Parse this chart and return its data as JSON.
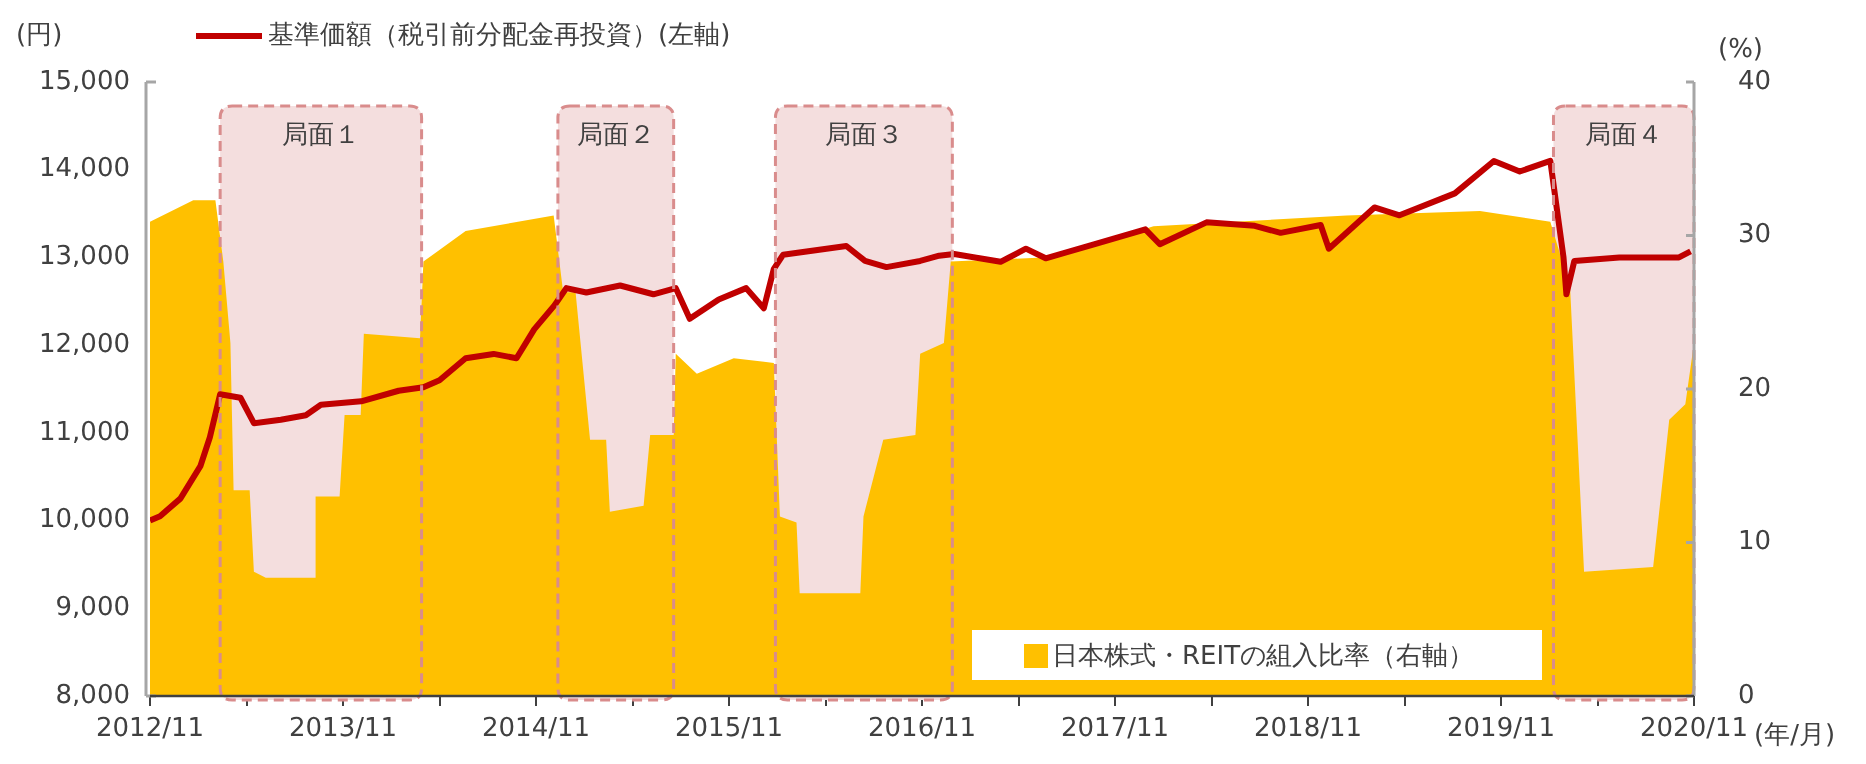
{
  "chart_data": {
    "type": "line",
    "annotations": [
      "(円)"
    ],
    "y2label": "(%)",
    "xlabel": "(年/月)",
    "legend": "top left",
    "xlim": [
      "2012-11",
      "2020-11"
    ],
    "xticks": [
      {
        "value": "2012-11",
        "label": "2012/11"
      },
      {
        "value": "2013-05",
        "label": null
      },
      {
        "value": "2013-11",
        "label": "2013/11"
      },
      {
        "value": "2014-05",
        "label": null
      },
      {
        "value": "2014-11",
        "label": "2014/11"
      },
      {
        "value": "2015-05",
        "label": null
      },
      {
        "value": "2015-11",
        "label": "2015/11"
      },
      {
        "value": "2016-05",
        "label": null
      },
      {
        "value": "2016-11",
        "label": "2016/11"
      },
      {
        "value": "2017-05",
        "label": null
      },
      {
        "value": "2017-11",
        "label": "2017/11"
      },
      {
        "value": "2018-05",
        "label": null
      },
      {
        "value": "2018-11",
        "label": "2018/11"
      },
      {
        "value": "2019-05",
        "label": null
      },
      {
        "value": "2019-11",
        "label": "2019/11"
      },
      {
        "value": "2020-05",
        "label": null
      },
      {
        "value": "2020-11",
        "label": "2020/11"
      }
    ],
    "ylim": [
      8000,
      15000
    ],
    "yticks": [
      {
        "value": 8000,
        "label": "8,000"
      },
      {
        "value": 9000,
        "label": "9,000"
      },
      {
        "value": 10000,
        "label": "10,000"
      },
      {
        "value": 11000,
        "label": "11,000"
      },
      {
        "value": 12000,
        "label": "12,000"
      },
      {
        "value": 13000,
        "label": "13,000"
      },
      {
        "value": 14000,
        "label": "14,000"
      },
      {
        "value": 15000,
        "label": "15,000"
      }
    ],
    "y2lim": [
      0,
      40
    ],
    "y2ticks": [
      0,
      10,
      20,
      30,
      40
    ],
    "series": [
      {
        "name": "基準価額（税引前分配金再投資）(左軸)",
        "type": "line",
        "color": "#c00000",
        "x": [
          "2012-11-01",
          "2012-11-20",
          "2012-12-28",
          "2013-02-05",
          "2013-02-23",
          "2013-03-12",
          "2013-04-20",
          "2013-05-15",
          "2013-07-05",
          "2013-08-22",
          "2013-09-20",
          "2013-12-05",
          "2014-02-15",
          "2014-04-01",
          "2014-05-01",
          "2014-06-20",
          "2014-08-12",
          "2014-09-25",
          "2014-10-28",
          "2014-12-05",
          "2014-12-28",
          "2015-02-05",
          "2015-04-08",
          "2015-06-10",
          "2015-07-22",
          "2015-08-18",
          "2015-10-12",
          "2015-12-03",
          "2016-01-06",
          "2016-01-25",
          "2016-02-12",
          "2016-06-10",
          "2016-07-15",
          "2016-08-25",
          "2016-10-28",
          "2016-12-03",
          "2017-01-01",
          "2017-03-28",
          "2017-05-15",
          "2017-06-22",
          "2017-09-22",
          "2017-12-28",
          "2018-01-25",
          "2018-04-22",
          "2018-07-22",
          "2018-09-10",
          "2018-11-25",
          "2018-12-10",
          "2019-03-05",
          "2019-04-22",
          "2019-08-05",
          "2019-10-18",
          "2019-12-06",
          "2020-02-03",
          "2020-02-28",
          "2020-03-03",
          "2020-03-18",
          "2020-06-12",
          "2020-10-03",
          "2020-10-25"
        ],
        "values": [
          10000,
          10050,
          10250,
          10620,
          10950,
          11440,
          11400,
          11110,
          11150,
          11200,
          11320,
          11360,
          11480,
          11520,
          11600,
          11850,
          11900,
          11850,
          12180,
          12450,
          12650,
          12600,
          12680,
          12580,
          12650,
          12300,
          12520,
          12650,
          12420,
          12870,
          13030,
          13130,
          12960,
          12890,
          12960,
          13020,
          13040,
          12950,
          13100,
          12990,
          13150,
          13320,
          13150,
          13400,
          13360,
          13280,
          13370,
          13100,
          13570,
          13480,
          13730,
          14100,
          13980,
          14100,
          13000,
          12580,
          12960,
          13000,
          13000,
          13070
        ]
      },
      {
        "name": "日本株式・REITの組入比率（右軸）",
        "type": "area",
        "axis": "y2",
        "color": "#ffc000",
        "x": [
          "2012-11-01",
          "2013-01-22",
          "2013-03-03",
          "2013-03-18",
          "2013-04-01",
          "2013-04-07",
          "2013-05-07",
          "2013-05-15",
          "2013-06-07",
          "2013-09-07",
          "2013-09-10",
          "2013-10-25",
          "2013-11-04",
          "2013-12-04",
          "2013-12-10",
          "2014-03-25",
          "2014-04-01",
          "2014-06-20",
          "2014-12-04",
          "2014-12-22",
          "2015-01-15",
          "2015-02-12",
          "2015-03-12",
          "2015-03-19",
          "2015-05-22",
          "2015-06-04",
          "2015-07-18",
          "2015-07-22",
          "2015-09-01",
          "2015-11-10",
          "2016-01-25",
          "2016-02-06",
          "2016-03-07",
          "2016-03-13",
          "2016-07-06",
          "2016-07-12",
          "2016-08-19",
          "2016-10-19",
          "2016-10-28",
          "2016-12-12",
          "2016-12-25",
          "2017-07-06",
          "2018-01-13",
          "2019-01-13",
          "2019-09-22",
          "2020-02-03",
          "2020-03-10",
          "2020-04-06",
          "2020-08-15",
          "2020-09-15",
          "2020-10-15",
          "2020-11-01"
        ],
        "values": [
          30.9,
          32.3,
          32.3,
          28.3,
          23,
          13.4,
          13.4,
          8.1,
          7.7,
          7.7,
          13,
          13,
          18.3,
          18.3,
          23.6,
          23.3,
          28.3,
          30.3,
          31.3,
          26.3,
          26.3,
          16.7,
          16.7,
          12,
          12.4,
          17,
          17,
          22.3,
          21,
          22,
          21.7,
          11.7,
          11.3,
          6.7,
          6.7,
          11.7,
          16.7,
          17,
          22.3,
          23,
          28.3,
          28.6,
          30.6,
          31.3,
          31.6,
          30.9,
          26.6,
          8.1,
          8.4,
          18,
          19,
          23
        ]
      }
    ],
    "bands": [
      {
        "axis": "x",
        "from": "2013-03-12",
        "to": "2014-03-28",
        "label": "局面１",
        "color": "#f4dede"
      },
      {
        "axis": "x",
        "from": "2014-12-12",
        "to": "2015-07-18",
        "label": "局面２",
        "color": "#f4dede"
      },
      {
        "axis": "x",
        "from": "2016-01-28",
        "to": "2016-12-28",
        "label": "局面３",
        "color": "#f4dede"
      },
      {
        "axis": "x",
        "from": "2020-02-09",
        "to": "2020-11-01",
        "label": "局面４",
        "color": "#f4dede"
      }
    ]
  }
}
